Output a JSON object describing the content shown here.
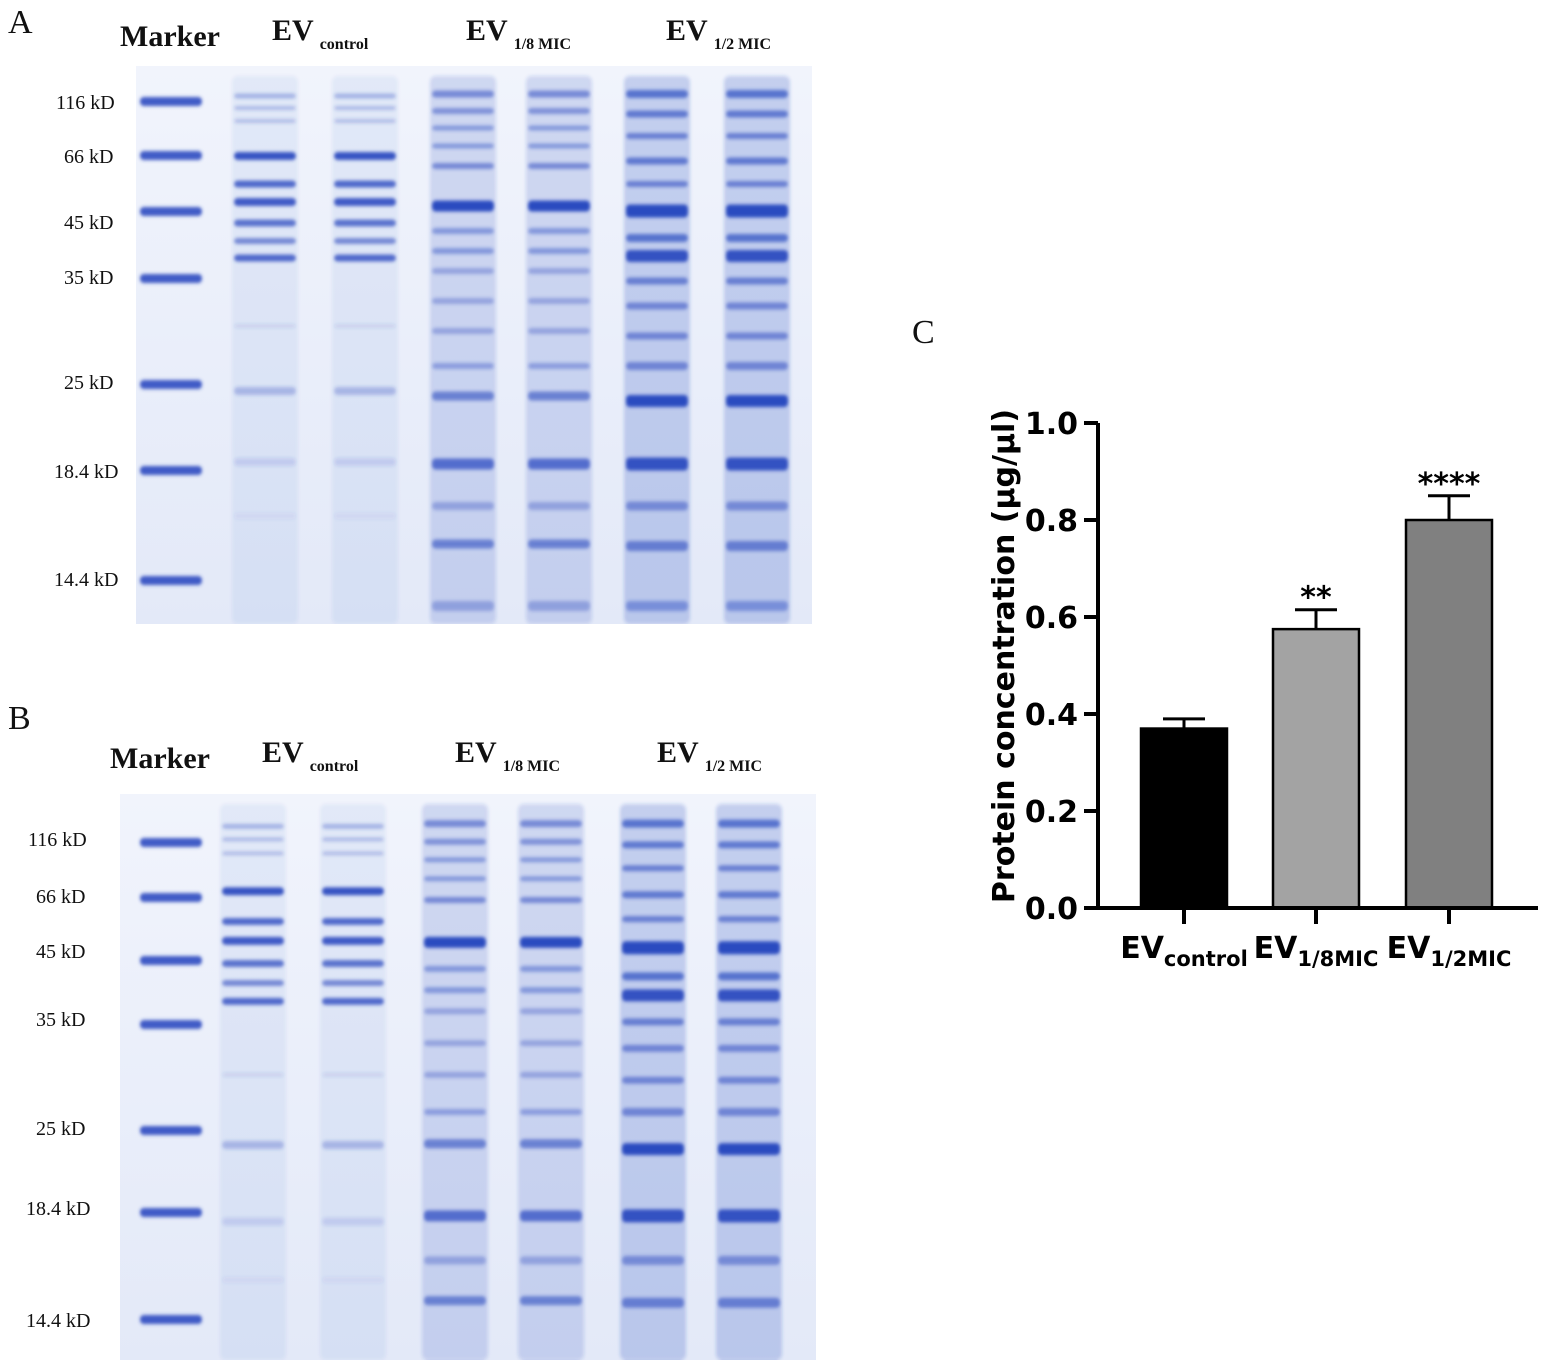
{
  "panels": {
    "A": {
      "letter": "A",
      "headers": {
        "marker": "Marker",
        "control_main": "EV",
        "control_sub": "control",
        "eighth_main": "EV",
        "eighth_sub": "1/8 MIC",
        "half_main": "EV",
        "half_sub": "1/2 MIC"
      },
      "mw_labels": [
        "116 kD",
        "66 kD",
        "45 kD",
        "35 kD",
        "25 kD",
        "18.4 kD",
        "14.4 kD"
      ]
    },
    "B": {
      "letter": "B",
      "headers": {
        "marker": "Marker",
        "control_main": "EV",
        "control_sub": "control",
        "eighth_main": "EV",
        "eighth_sub": "1/8 MIC",
        "half_main": "EV",
        "half_sub": "1/2 MIC"
      },
      "mw_labels": [
        "116 kD",
        "66 kD",
        "45 kD",
        "35 kD",
        "25 kD",
        "18.4 kD",
        "14.4 kD"
      ]
    },
    "C": {
      "letter": "C"
    }
  },
  "colors": {
    "gel_background": "#eef2fb",
    "band": "#2b4bc0",
    "bar_control": "#000000",
    "bar_eighth": "#a3a3a3",
    "bar_half": "#808080"
  },
  "chart_data": {
    "type": "bar",
    "categories": [
      {
        "main": "EV",
        "sub": "control"
      },
      {
        "main": "EV",
        "sub": "1/8MIC"
      },
      {
        "main": "EV",
        "sub": "1/2MIC"
      }
    ],
    "values": [
      0.37,
      0.575,
      0.8
    ],
    "errors": [
      0.02,
      0.04,
      0.05
    ],
    "significance": [
      "",
      "**",
      "****"
    ],
    "ylabel": "Protein concentration (μg/μl)",
    "ylim": [
      0,
      1.0
    ],
    "yticks": [
      "0.0",
      "0.2",
      "0.4",
      "0.6",
      "0.8",
      "1.0"
    ],
    "grid": false
  }
}
